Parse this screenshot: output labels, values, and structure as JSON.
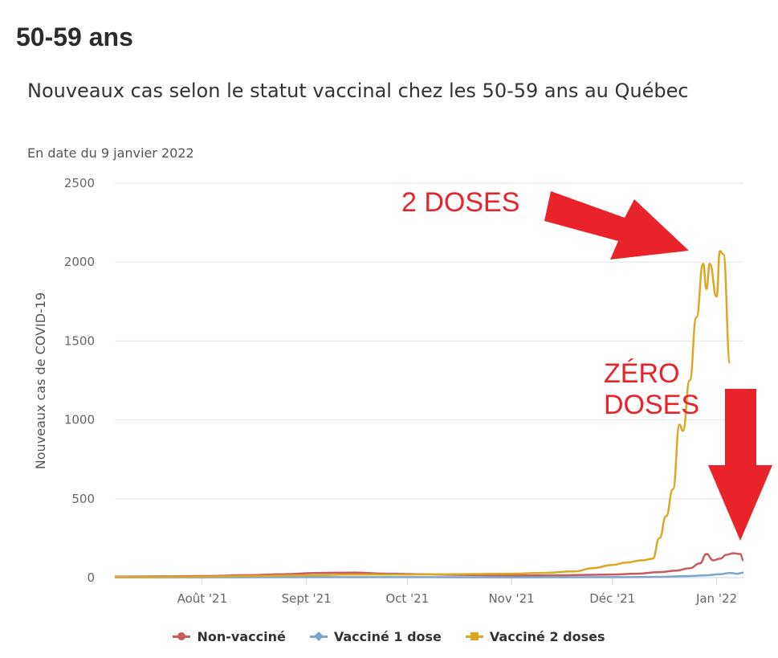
{
  "page": {
    "heading": "50-59 ans"
  },
  "chart_data": {
    "type": "line",
    "title": "Nouveaux cas selon le statut vaccinal chez les 50-59 ans au Québec",
    "subtitle": "En date du 9 janvier 2022",
    "ylabel": "Nouveaux cas de COVID-19",
    "xlabel": "",
    "ylim": [
      0,
      2500
    ],
    "yticks": [
      0,
      500,
      1000,
      1500,
      2000,
      2500
    ],
    "xlim": [
      "2021-07-06",
      "2022-01-09"
    ],
    "xticks": [
      {
        "date": "2021-08-01",
        "label": "Août '21"
      },
      {
        "date": "2021-09-01",
        "label": "Sept '21"
      },
      {
        "date": "2021-10-01",
        "label": "Oct '21"
      },
      {
        "date": "2021-11-01",
        "label": "Nov '21"
      },
      {
        "date": "2021-12-01",
        "label": "Déc '21"
      },
      {
        "date": "2022-01-01",
        "label": "Jan '22"
      }
    ],
    "grid": true,
    "legend_position": "bottom",
    "series": [
      {
        "name": "Non-vacciné",
        "color": "#c75b5e",
        "marker": "circle",
        "points": [
          [
            "2021-07-06",
            6
          ],
          [
            "2021-07-20",
            8
          ],
          [
            "2021-08-01",
            10
          ],
          [
            "2021-08-15",
            16
          ],
          [
            "2021-08-25",
            22
          ],
          [
            "2021-09-05",
            30
          ],
          [
            "2021-09-15",
            32
          ],
          [
            "2021-09-25",
            25
          ],
          [
            "2021-10-05",
            22
          ],
          [
            "2021-10-15",
            18
          ],
          [
            "2021-10-25",
            15
          ],
          [
            "2021-11-05",
            14
          ],
          [
            "2021-11-15",
            15
          ],
          [
            "2021-11-25",
            18
          ],
          [
            "2021-12-01",
            20
          ],
          [
            "2021-12-08",
            25
          ],
          [
            "2021-12-15",
            35
          ],
          [
            "2021-12-20",
            45
          ],
          [
            "2021-12-24",
            60
          ],
          [
            "2021-12-27",
            90
          ],
          [
            "2021-12-29",
            150
          ],
          [
            "2021-12-31",
            110
          ],
          [
            "2022-01-02",
            120
          ],
          [
            "2022-01-04",
            145
          ],
          [
            "2022-01-06",
            155
          ],
          [
            "2022-01-08",
            150
          ],
          [
            "2022-01-09",
            110
          ]
        ]
      },
      {
        "name": "Vacciné 1 dose",
        "color": "#7ba7cc",
        "marker": "diamond",
        "points": [
          [
            "2021-07-06",
            2
          ],
          [
            "2021-08-01",
            2
          ],
          [
            "2021-09-01",
            3
          ],
          [
            "2021-10-01",
            3
          ],
          [
            "2021-11-01",
            2
          ],
          [
            "2021-12-01",
            3
          ],
          [
            "2021-12-15",
            5
          ],
          [
            "2021-12-24",
            10
          ],
          [
            "2021-12-29",
            15
          ],
          [
            "2022-01-02",
            22
          ],
          [
            "2022-01-05",
            30
          ],
          [
            "2022-01-07",
            25
          ],
          [
            "2022-01-09",
            32
          ]
        ]
      },
      {
        "name": "Vacciné 2 doses",
        "color": "#dba825",
        "marker": "square",
        "points": [
          [
            "2021-07-06",
            3
          ],
          [
            "2021-08-01",
            6
          ],
          [
            "2021-08-15",
            10
          ],
          [
            "2021-09-01",
            15
          ],
          [
            "2021-09-15",
            20
          ],
          [
            "2021-10-01",
            20
          ],
          [
            "2021-10-15",
            22
          ],
          [
            "2021-11-01",
            25
          ],
          [
            "2021-11-10",
            30
          ],
          [
            "2021-11-20",
            40
          ],
          [
            "2021-11-25",
            60
          ],
          [
            "2021-12-01",
            80
          ],
          [
            "2021-12-05",
            95
          ],
          [
            "2021-12-10",
            110
          ],
          [
            "2021-12-13",
            120
          ],
          [
            "2021-12-15",
            250
          ],
          [
            "2021-12-17",
            390
          ],
          [
            "2021-12-19",
            560
          ],
          [
            "2021-12-21",
            970
          ],
          [
            "2021-12-22",
            930
          ],
          [
            "2021-12-24",
            1250
          ],
          [
            "2021-12-26",
            1650
          ],
          [
            "2021-12-28",
            1990
          ],
          [
            "2021-12-29",
            1830
          ],
          [
            "2021-12-30",
            1990
          ],
          [
            "2022-01-01",
            1780
          ],
          [
            "2022-01-02",
            2070
          ],
          [
            "2022-01-03",
            2050
          ],
          [
            "2022-01-05",
            1360
          ]
        ]
      }
    ],
    "annotations": [
      {
        "text": "2 DOSES",
        "color": "#e8232a"
      },
      {
        "text": "ZÉRO DOSES",
        "color": "#e8232a"
      }
    ]
  }
}
